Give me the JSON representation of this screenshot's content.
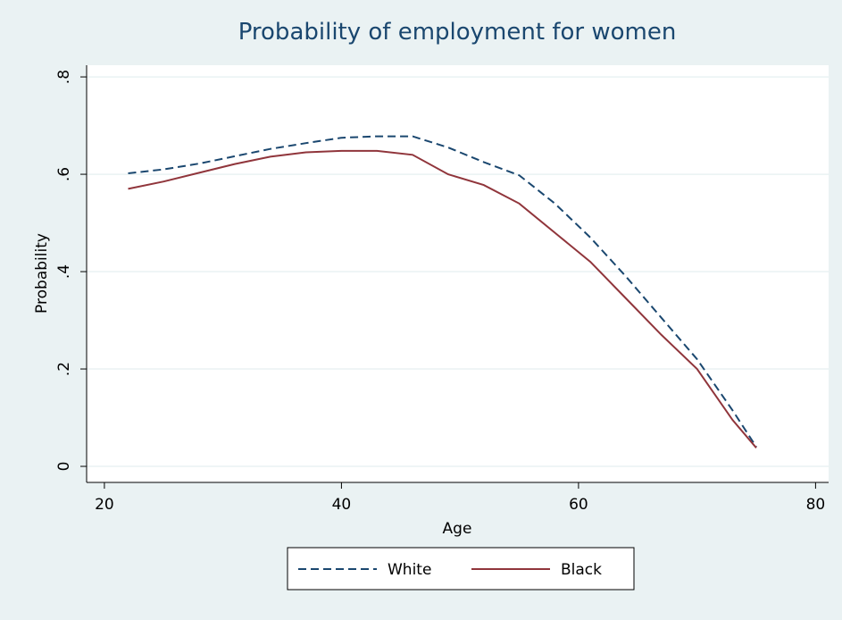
{
  "chart_data": {
    "type": "line",
    "title": "Probability of employment for women",
    "x_label": "Age",
    "y_label": "Probability",
    "x": [
      22,
      25,
      28,
      31,
      34,
      37,
      40,
      43,
      46,
      49,
      52,
      55,
      58,
      61,
      64,
      67,
      70,
      73,
      75
    ],
    "series": [
      {
        "name": "White",
        "color": "#1a476f",
        "dash": true,
        "values": [
          0.602,
          0.61,
          0.622,
          0.637,
          0.652,
          0.664,
          0.675,
          0.678,
          0.678,
          0.655,
          0.625,
          0.598,
          0.54,
          0.47,
          0.39,
          0.305,
          0.22,
          0.115,
          0.04
        ]
      },
      {
        "name": "Black",
        "color": "#90353b",
        "dash": false,
        "values": [
          0.57,
          0.585,
          0.603,
          0.621,
          0.636,
          0.645,
          0.648,
          0.648,
          0.64,
          0.6,
          0.578,
          0.54,
          0.48,
          0.42,
          0.345,
          0.27,
          0.2,
          0.095,
          0.038
        ]
      }
    ],
    "xlim": [
      18.5,
      81.1
    ],
    "ylim": [
      -0.033,
      0.824
    ],
    "xticks": [
      20,
      40,
      60,
      80
    ],
    "yticks": [
      0,
      {
        "value": 0.2,
        "label": ".2"
      },
      {
        "value": 0.4,
        "label": ".4"
      },
      {
        "value": 0.6,
        "label": ".6"
      },
      {
        "value": 0.8,
        "label": ".8"
      }
    ],
    "grid": true,
    "legend": "bottom"
  }
}
